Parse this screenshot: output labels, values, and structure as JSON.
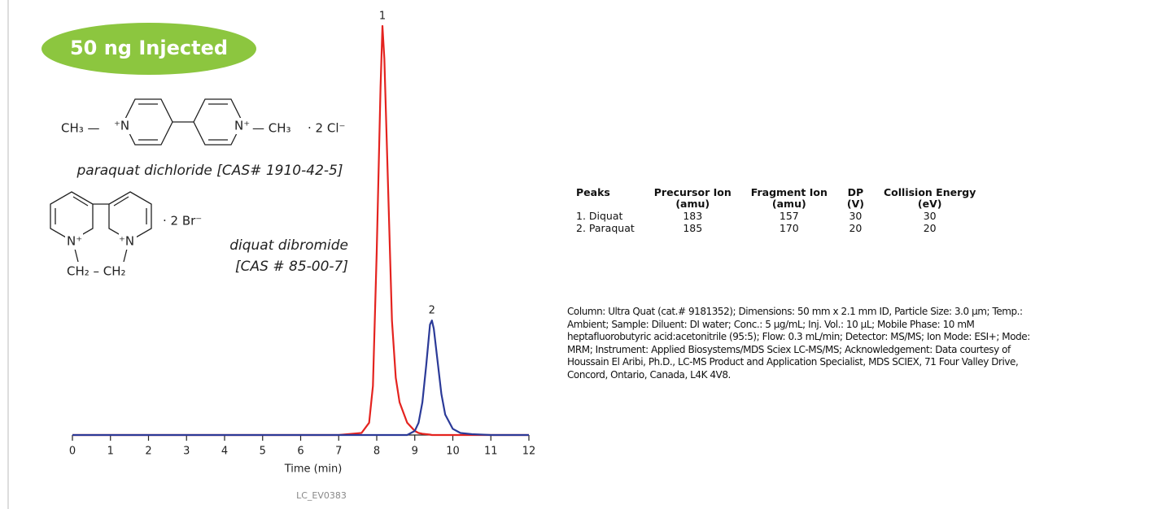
{
  "badge": "50 ng Injected",
  "structures": {
    "paraquat": {
      "labels": [
        "CH₃ —",
        "⁺N",
        "N⁺",
        "— CH₃",
        "· 2 Cl⁻"
      ],
      "name": "paraquat dichloride [CAS# 1910-42-5]"
    },
    "diquat": {
      "labels": [
        "N⁺",
        "⁺N",
        "· 2 Br⁻",
        "CH₂ – CH₂"
      ],
      "name": [
        "diquat dibromide",
        "[CAS # 85-00-7]"
      ]
    }
  },
  "chart_data": {
    "type": "line",
    "x_label": "Time (min)",
    "x": [
      0,
      2,
      4,
      6,
      7,
      7.6,
      7.8,
      7.9,
      8.0,
      8.1,
      8.15,
      8.2,
      8.3,
      8.4,
      8.5,
      8.6,
      8.8,
      9.0,
      9.1,
      9.2,
      9.3,
      9.4,
      9.45,
      9.5,
      9.6,
      9.7,
      9.8,
      10.0,
      10.2,
      10.5,
      11,
      12
    ],
    "series": [
      {
        "color": "#e4231f",
        "values": [
          0,
          0,
          0,
          0,
          0,
          0.5,
          3,
          12,
          45,
          85,
          100,
          92,
          60,
          28,
          14,
          8,
          3,
          1,
          0.5,
          0.3,
          0.2,
          0.1,
          0,
          0,
          0,
          0,
          0,
          0,
          0,
          0,
          0,
          0
        ]
      },
      {
        "color": "#2b3a98",
        "values": [
          0,
          0,
          0,
          0,
          0,
          0,
          0,
          0,
          0,
          0,
          0,
          0,
          0,
          0,
          0,
          0,
          0,
          1,
          3,
          8,
          17,
          27,
          28,
          26,
          18,
          10,
          5,
          1.5,
          0.5,
          0.2,
          0,
          0
        ]
      }
    ],
    "annotations": [
      "1",
      "2"
    ],
    "xlim": [
      0,
      12
    ],
    "xticks": [
      0,
      1,
      2,
      3,
      4,
      5,
      6,
      7,
      8,
      9,
      10,
      11,
      12
    ]
  },
  "table": {
    "header": [
      {
        "name": "Peaks"
      },
      {
        "name": "Precursor Ion",
        "unit": "(amu)"
      },
      {
        "name": "Fragment Ion",
        "unit": "(amu)"
      },
      {
        "name": "DP",
        "unit": "(V)"
      },
      {
        "name": "Collision Energy",
        "unit": "(eV)"
      }
    ],
    "rows": [
      [
        "1.  Diquat",
        "183",
        "157",
        "30",
        "30"
      ],
      [
        "2.  Paraquat",
        "185",
        "170",
        "20",
        "20"
      ]
    ]
  },
  "conditions": "Column: Ultra Quat (cat.# 9181352); Dimensions: 50 mm x 2.1 mm ID, Particle Size: 3.0 µm; Temp.: Ambient; Sample: Diluent: DI water; Conc.: 5 µg/mL; Inj. Vol.: 10 µL; Mobile Phase: 10 mM heptafluorobutyric acid:acetonitrile (95:5); Flow: 0.3 mL/min; Detector: MS/MS; Ion Mode: ESI+; Mode: MRM; Instrument: Applied Biosystems/MDS Sciex LC-MS/MS; Acknowledgement: Data courtesy of Houssain El Aribi, Ph.D., LC-MS Product and Application Specialist, MDS SCIEX, 71 Four Valley Drive, Concord, Ontario, Canada, L4K 4V8.",
  "figure_id": "LC_EV0383"
}
